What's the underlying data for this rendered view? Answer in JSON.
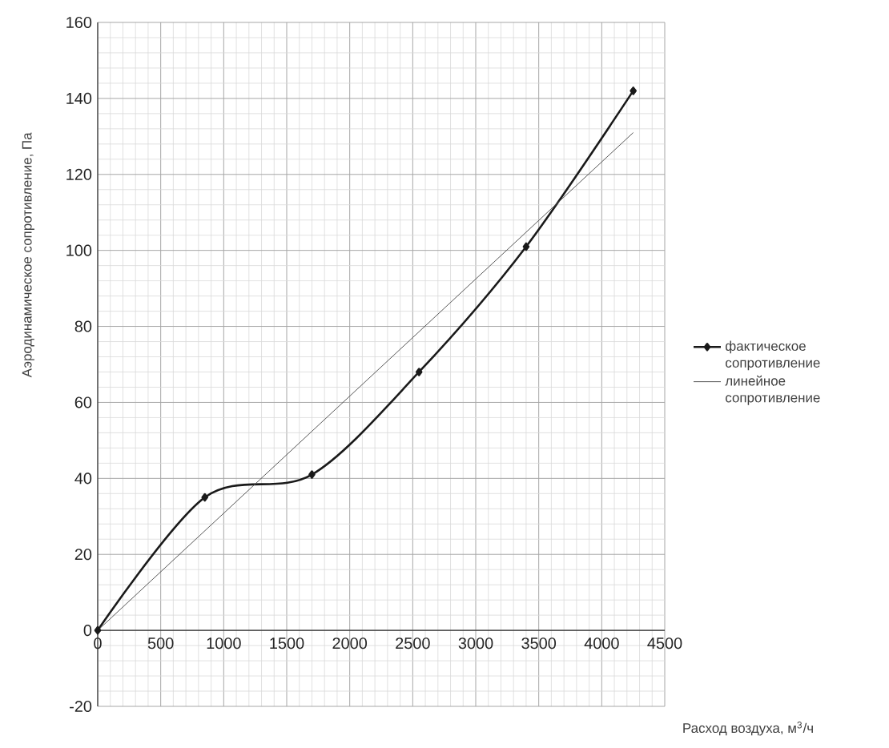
{
  "chart_data": {
    "type": "line",
    "xlabel": "Расход воздуха, м$^{3}$/ч",
    "ylabel": "Аэродинамическое сопротивление, Па",
    "xlim": [
      0,
      4500
    ],
    "xticks": [
      0,
      500,
      1000,
      1500,
      2000,
      2500,
      3000,
      3500,
      4000,
      4500
    ],
    "ylim": [
      -20,
      160
    ],
    "yticks": [
      -20,
      0,
      20,
      40,
      60,
      80,
      100,
      120,
      140,
      160
    ],
    "grid": true,
    "legend": "right",
    "series": [
      {
        "name": "фактическое сопротивление",
        "color": "#1a1a1a",
        "marker": "diamond",
        "x": [
          0,
          850,
          1700,
          2550,
          3400,
          4250
        ],
        "values": [
          0,
          35,
          41,
          68,
          101,
          142
        ]
      },
      {
        "name": "линейное сопротивление",
        "color": "#555555",
        "marker": "none",
        "x": [
          0,
          4250
        ],
        "values": [
          0,
          131
        ]
      }
    ]
  }
}
